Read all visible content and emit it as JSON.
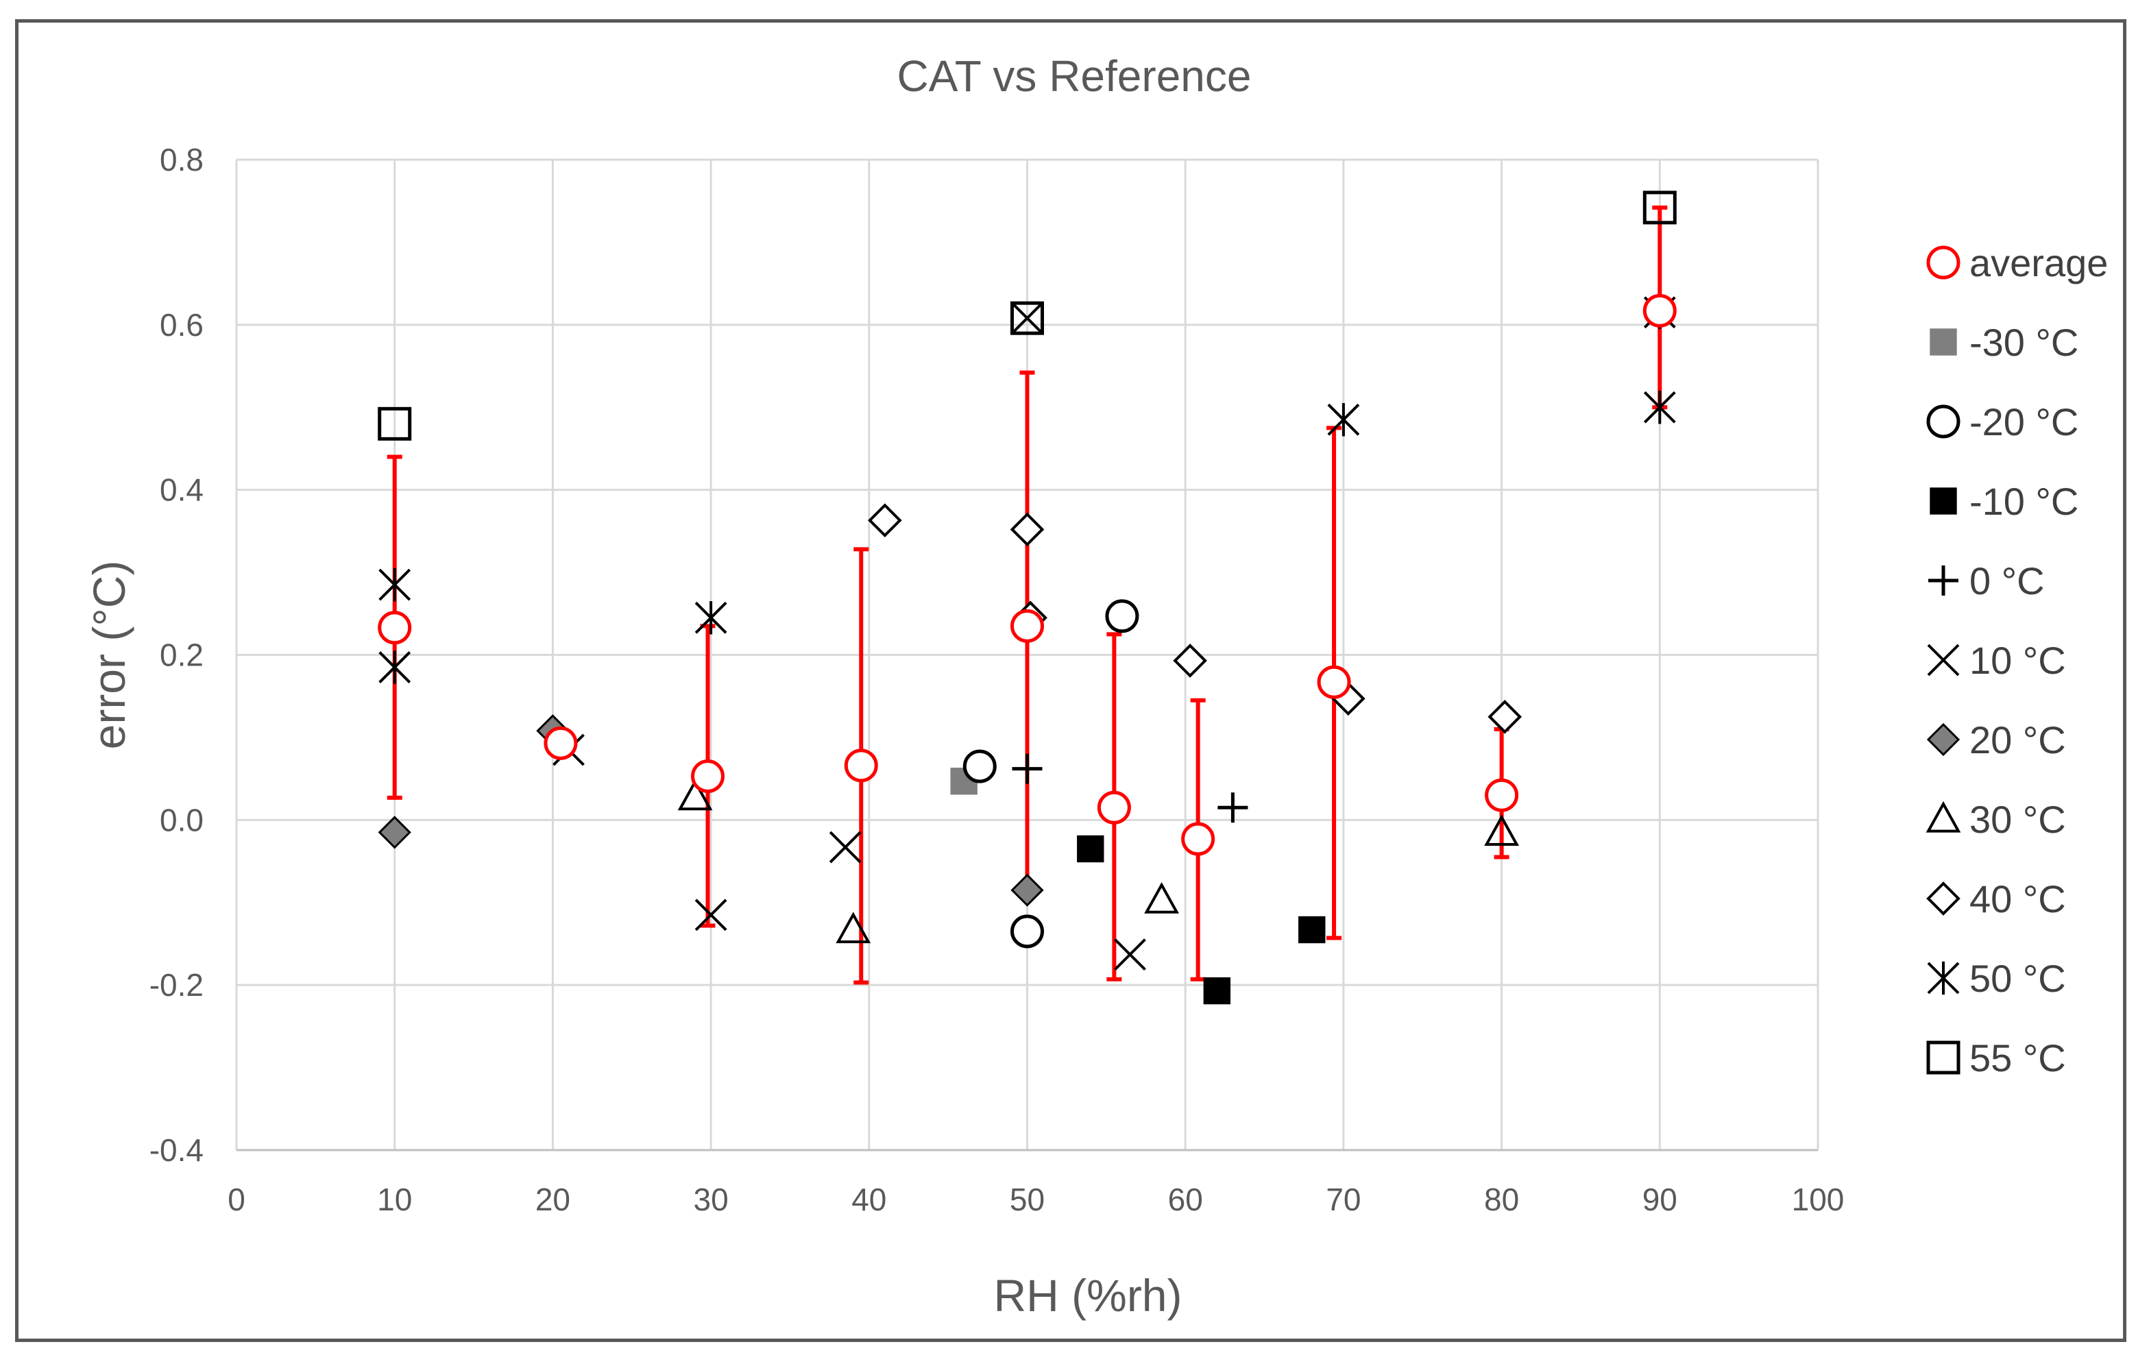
{
  "chart_data": {
    "type": "scatter",
    "title": "CAT vs Reference",
    "xlabel": "RH (%rh)",
    "ylabel": "error (°C)",
    "xlim": [
      0,
      100
    ],
    "ylim": [
      -0.4,
      0.8
    ],
    "x_ticks": [
      "0",
      "10",
      "20",
      "30",
      "40",
      "50",
      "60",
      "70",
      "80",
      "90",
      "100"
    ],
    "y_ticks": [
      "-0.4",
      "-0.2",
      "0.0",
      "0.2",
      "0.4",
      "0.6",
      "0.8"
    ],
    "grid": true,
    "legend_position": "right",
    "series": [
      {
        "name": "average",
        "marker": "circle-open",
        "color": "#ff0000",
        "points": [
          [
            10,
            0.233
          ],
          [
            20.5,
            0.093
          ],
          [
            29.8,
            0.053
          ],
          [
            39.5,
            0.066
          ],
          [
            50,
            0.235
          ],
          [
            55.5,
            0.015
          ],
          [
            60.8,
            -0.023
          ],
          [
            69.4,
            0.167
          ],
          [
            80,
            0.03
          ],
          [
            90,
            0.617
          ]
        ],
        "error_low": [
          0.027,
          null,
          -0.128,
          -0.197,
          -0.085,
          -0.193,
          -0.193,
          -0.143,
          -0.045,
          0.5
        ],
        "error_high": [
          0.44,
          null,
          0.235,
          0.328,
          0.542,
          0.225,
          0.145,
          0.475,
          0.11,
          0.742
        ]
      },
      {
        "name": "-30 °C",
        "marker": "square-filled",
        "color": "#7f7f7f",
        "points": [
          [
            46,
            0.047
          ]
        ]
      },
      {
        "name": "-20 °C",
        "marker": "circle-open",
        "color": "#000000",
        "points": [
          [
            47,
            0.065
          ],
          [
            50,
            -0.135
          ],
          [
            56,
            0.247
          ]
        ]
      },
      {
        "name": "-10 °C",
        "marker": "square-filled",
        "color": "#000000",
        "points": [
          [
            54,
            -0.035
          ],
          [
            62,
            -0.207
          ],
          [
            68,
            -0.133
          ]
        ]
      },
      {
        "name": "0 °C",
        "marker": "plus",
        "color": "#000000",
        "points": [
          [
            50,
            0.062
          ],
          [
            63,
            0.015
          ]
        ]
      },
      {
        "name": "10 °C",
        "marker": "x",
        "color": "#000000",
        "points": [
          [
            21,
            0.085
          ],
          [
            30,
            -0.115
          ],
          [
            38.5,
            -0.033
          ],
          [
            50,
            0.608
          ],
          [
            56.5,
            -0.163
          ]
        ]
      },
      {
        "name": "20 °C",
        "marker": "diamond-filled",
        "color": "#7f7f7f",
        "points": [
          [
            10,
            -0.015
          ],
          [
            20,
            0.108
          ],
          [
            50,
            -0.085
          ]
        ]
      },
      {
        "name": "30 °C",
        "marker": "triangle-open",
        "color": "#000000",
        "points": [
          [
            29,
            0.028
          ],
          [
            39,
            -0.133
          ],
          [
            58.5,
            -0.097
          ],
          [
            80,
            -0.015
          ]
        ]
      },
      {
        "name": "40 °C",
        "marker": "diamond-open",
        "color": "#000000",
        "points": [
          [
            41,
            0.363
          ],
          [
            50,
            0.352
          ],
          [
            50.2,
            0.245
          ],
          [
            60.3,
            0.193
          ],
          [
            70.3,
            0.147
          ],
          [
            80.2,
            0.125
          ]
        ]
      },
      {
        "name": "50 °C",
        "marker": "asterisk",
        "color": "#000000",
        "points": [
          [
            10,
            0.285
          ],
          [
            10,
            0.185
          ],
          [
            30,
            0.245
          ],
          [
            70,
            0.485
          ],
          [
            90,
            0.615
          ],
          [
            90,
            0.5
          ]
        ]
      },
      {
        "name": "55 °C",
        "marker": "square-open",
        "color": "#000000",
        "points": [
          [
            10,
            0.48
          ],
          [
            50,
            0.608
          ],
          [
            90,
            0.742
          ]
        ]
      }
    ]
  }
}
